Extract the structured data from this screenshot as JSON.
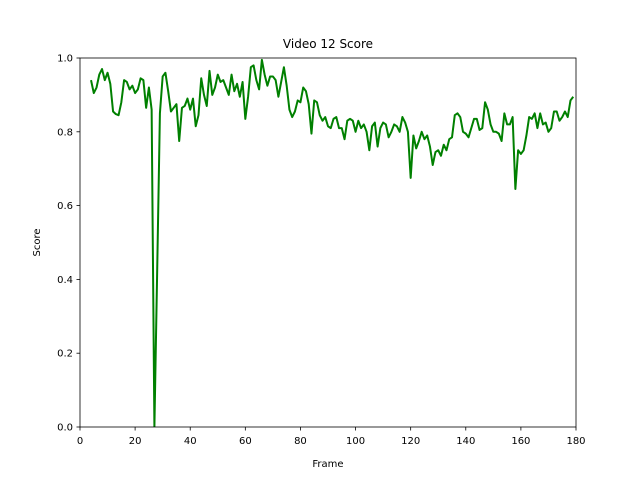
{
  "chart_data": {
    "type": "line",
    "title": "Video 12 Score",
    "x_label": "Frame",
    "y_label": "Score",
    "x": [
      4,
      5,
      6,
      7,
      8,
      9,
      10,
      11,
      12,
      13,
      14,
      15,
      16,
      17,
      18,
      19,
      20,
      21,
      22,
      23,
      24,
      25,
      26,
      27,
      28,
      29,
      30,
      31,
      32,
      33,
      34,
      35,
      36,
      37,
      38,
      39,
      40,
      41,
      42,
      43,
      44,
      45,
      46,
      47,
      48,
      49,
      50,
      51,
      52,
      53,
      54,
      55,
      56,
      57,
      58,
      59,
      60,
      61,
      62,
      63,
      64,
      65,
      66,
      67,
      68,
      69,
      70,
      71,
      72,
      73,
      74,
      75,
      76,
      77,
      78,
      79,
      80,
      81,
      82,
      83,
      84,
      85,
      86,
      87,
      88,
      89,
      90,
      91,
      92,
      93,
      94,
      95,
      96,
      97,
      98,
      99,
      100,
      101,
      102,
      103,
      104,
      105,
      106,
      107,
      108,
      109,
      110,
      111,
      112,
      113,
      114,
      115,
      116,
      117,
      118,
      119,
      120,
      121,
      122,
      123,
      124,
      125,
      126,
      127,
      128,
      129,
      130,
      131,
      132,
      133,
      134,
      135,
      136,
      137,
      138,
      139,
      140,
      141,
      142,
      143,
      144,
      145,
      146,
      147,
      148,
      149,
      150,
      151,
      152,
      153,
      154,
      155,
      156,
      157,
      158,
      159,
      160,
      161,
      162,
      163,
      164,
      165,
      166,
      167,
      168,
      169,
      170,
      171,
      172,
      173,
      174,
      175,
      176,
      177,
      178,
      179
    ],
    "series": [
      {
        "name": "Score",
        "color": "#008000",
        "values": [
          0.94,
          0.905,
          0.92,
          0.955,
          0.97,
          0.94,
          0.96,
          0.93,
          0.855,
          0.848,
          0.845,
          0.88,
          0.94,
          0.935,
          0.915,
          0.925,
          0.905,
          0.915,
          0.945,
          0.94,
          0.865,
          0.92,
          0.86,
          0.0,
          0.42,
          0.85,
          0.95,
          0.96,
          0.91,
          0.855,
          0.865,
          0.875,
          0.775,
          0.865,
          0.87,
          0.89,
          0.86,
          0.89,
          0.815,
          0.845,
          0.945,
          0.9,
          0.87,
          0.965,
          0.9,
          0.92,
          0.955,
          0.935,
          0.94,
          0.92,
          0.9,
          0.955,
          0.91,
          0.93,
          0.895,
          0.935,
          0.835,
          0.895,
          0.975,
          0.98,
          0.94,
          0.915,
          0.995,
          0.955,
          0.925,
          0.95,
          0.95,
          0.94,
          0.895,
          0.935,
          0.975,
          0.925,
          0.86,
          0.84,
          0.855,
          0.885,
          0.88,
          0.92,
          0.91,
          0.875,
          0.795,
          0.885,
          0.88,
          0.845,
          0.83,
          0.84,
          0.815,
          0.81,
          0.835,
          0.84,
          0.81,
          0.81,
          0.78,
          0.83,
          0.835,
          0.83,
          0.8,
          0.83,
          0.81,
          0.82,
          0.8,
          0.75,
          0.815,
          0.825,
          0.76,
          0.81,
          0.825,
          0.82,
          0.785,
          0.8,
          0.82,
          0.815,
          0.8,
          0.84,
          0.825,
          0.8,
          0.675,
          0.79,
          0.755,
          0.775,
          0.8,
          0.78,
          0.79,
          0.76,
          0.71,
          0.745,
          0.75,
          0.735,
          0.765,
          0.75,
          0.78,
          0.785,
          0.845,
          0.85,
          0.84,
          0.8,
          0.795,
          0.785,
          0.81,
          0.835,
          0.835,
          0.805,
          0.81,
          0.88,
          0.86,
          0.82,
          0.8,
          0.8,
          0.795,
          0.775,
          0.85,
          0.82,
          0.82,
          0.84,
          0.645,
          0.75,
          0.74,
          0.75,
          0.79,
          0.84,
          0.835,
          0.85,
          0.81,
          0.85,
          0.82,
          0.825,
          0.8,
          0.81,
          0.855,
          0.855,
          0.83,
          0.84,
          0.855,
          0.84,
          0.885,
          0.895
        ]
      }
    ],
    "xlim": [
      0,
      180
    ],
    "xticks": [
      0,
      20,
      40,
      60,
      80,
      100,
      120,
      140,
      160,
      180
    ],
    "ylim": [
      0,
      1
    ],
    "yticks": [
      {
        "value": 0,
        "label": "0.0"
      },
      0.2,
      0.4,
      0.6,
      0.8,
      {
        "value": 1,
        "label": "1.0"
      }
    ],
    "grid": false
  }
}
